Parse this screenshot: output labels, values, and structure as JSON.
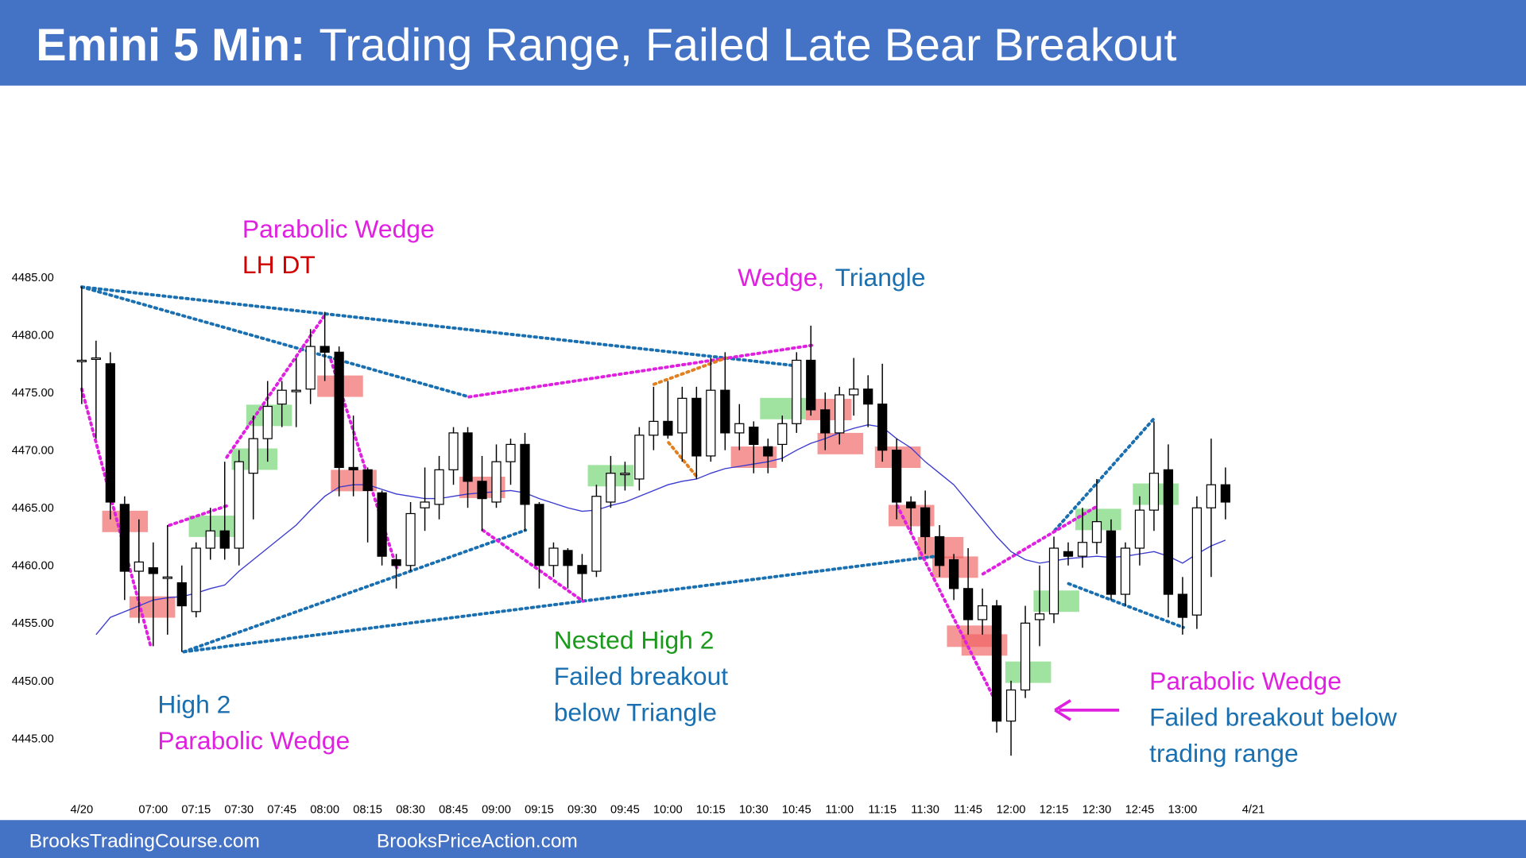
{
  "header": {
    "title_prefix": "Emini 5 Min:",
    "title": "Trading Range, Failed Late Bear Breakout"
  },
  "footer": {
    "left": "BrooksTradingCourse.com",
    "right": "BrooksPriceAction.com"
  },
  "chart_data": {
    "type": "candlestick",
    "categories": [
      "4/20",
      null,
      null,
      null,
      null,
      "07:00",
      null,
      null,
      "07:15",
      null,
      null,
      "07:30",
      null,
      null,
      "07:45",
      null,
      null,
      "08:00",
      null,
      null,
      "08:15",
      null,
      null,
      "08:30",
      null,
      null,
      "08:45",
      null,
      null,
      "09:00",
      null,
      null,
      "09:15",
      null,
      null,
      "09:30",
      null,
      null,
      "09:45",
      null,
      null,
      "10:00",
      null,
      null,
      "10:15",
      null,
      null,
      "10:30",
      null,
      null,
      "10:45",
      null,
      null,
      "11:00",
      null,
      null,
      "11:15",
      null,
      null,
      "11:30",
      null,
      null,
      "11:45",
      null,
      null,
      "12:00",
      null,
      null,
      "12:15",
      null,
      null,
      "12:30",
      null,
      null,
      "12:45",
      null,
      null,
      "13:00",
      null,
      null,
      null
    ],
    "next_day_label": "4/21",
    "open": [
      4477.8,
      4478,
      4477.5,
      4465.3,
      4459.5,
      4459.8,
      4459,
      4458.5,
      4456,
      4461.5,
      4463,
      4461.5,
      4468,
      4471,
      4474,
      4475.2,
      4475.3,
      4479,
      4478.5,
      4468.5,
      4468.3,
      4466.3,
      4460.5,
      4460,
      4465,
      4465.3,
      4468.3,
      4471.5,
      4467.3,
      4465.5,
      4469,
      4470.5,
      4465.3,
      4460,
      4461.3,
      4460,
      4459.5,
      4465.5,
      4468,
      4467.5,
      4471.3,
      4472.5,
      4471.5,
      4474.5,
      4469.5,
      4475.2,
      4471.5,
      4472,
      4470.3,
      4470.5,
      4472.3,
      4477.8,
      4473.5,
      4471.5,
      4474.8,
      4475.3,
      4474,
      4470,
      4465.5,
      4465,
      4462.5,
      4460.5,
      4458,
      4455.3,
      4456.5,
      4446.5,
      4449.2,
      4455.3,
      4455.8,
      4461.2,
      4460.8,
      4462,
      4463,
      4457.5,
      4461.5,
      4464.8,
      4468.3,
      4457.5,
      4455.7,
      4465,
      4467
    ],
    "high": [
      4484.2,
      4479.5,
      4478.5,
      4466,
      4464,
      4462,
      4463.5,
      4460,
      4462,
      4465,
      4469,
      4470,
      4473,
      4476,
      4476,
      4478,
      4480.5,
      4482,
      4479,
      4473,
      4468.5,
      4466.5,
      4461,
      4465.5,
      4468.5,
      4469.5,
      4472,
      4472,
      4469.5,
      4470.5,
      4471,
      4471.5,
      4465.5,
      4462,
      4461.5,
      4461,
      4467,
      4469.5,
      4469,
      4472,
      4475.5,
      4476,
      4475.5,
      4475.5,
      4478,
      4478.5,
      4474,
      4472.5,
      4471,
      4473,
      4478.5,
      4480.8,
      4475,
      4475.5,
      4478,
      4476.5,
      4477.5,
      4471,
      4466,
      4466.5,
      4463.5,
      4461,
      4461.5,
      4458,
      4457,
      4450,
      4456.5,
      4460,
      4462.5,
      4462,
      4465,
      4467.5,
      4464,
      4462,
      4466,
      4472.5,
      4470.5,
      4459,
      4466,
      4471,
      4468.5
    ],
    "low": [
      4474,
      4471,
      4464,
      4457,
      4455,
      4453,
      4454,
      4452.5,
      4455.5,
      4460.5,
      4460.5,
      4460,
      4464,
      4469,
      4472,
      4472,
      4474,
      4476,
      4466,
      4466,
      4462,
      4460,
      4458,
      4459.5,
      4463,
      4464,
      4467,
      4465,
      4463,
      4465,
      4467,
      4463,
      4458,
      4459,
      4458,
      4457,
      4459,
      4465,
      4466.5,
      4466.5,
      4470,
      4471,
      4469,
      4467.5,
      4469,
      4470,
      4470,
      4468,
      4468,
      4469,
      4471.5,
      4473,
      4470,
      4470.5,
      4473,
      4472,
      4469,
      4464,
      4463,
      4461,
      4459,
      4457,
      4454,
      4454,
      4445.5,
      4443.5,
      4448.5,
      4453,
      4455,
      4460,
      4459.8,
      4461,
      4457,
      4456.5,
      4460,
      4463,
      4455.5,
      4454,
      4454.5,
      4459,
      4464
    ],
    "close": [
      4477.8,
      4478,
      4465.5,
      4459.5,
      4460.3,
      4459.3,
      4459,
      4456.5,
      4461.5,
      4463,
      4461.5,
      4469,
      4471,
      4473.8,
      4475.2,
      4475.2,
      4479,
      4478.5,
      4468.5,
      4468.3,
      4466.5,
      4460.8,
      4460,
      4464.5,
      4465.5,
      4468.3,
      4471.5,
      4467.3,
      4465.8,
      4469,
      4470.5,
      4465.3,
      4460,
      4461.5,
      4460,
      4459.3,
      4466,
      4468,
      4468,
      4471.3,
      4472.5,
      4471.3,
      4474.5,
      4469.5,
      4475.2,
      4471.5,
      4472.3,
      4470.5,
      4469.5,
      4472.3,
      4477.8,
      4473.5,
      4471.5,
      4474.8,
      4475.3,
      4474,
      4470,
      4465.5,
      4465,
      4462.5,
      4460,
      4458,
      4455.3,
      4456.5,
      4446.5,
      4449.2,
      4455,
      4455.8,
      4461.5,
      4460.8,
      4462,
      4463.8,
      4457.5,
      4461.5,
      4464.8,
      4468,
      4457.5,
      4455.5,
      4465,
      4467,
      4465.5
    ],
    "moving_average": {
      "color": "#3a3ad0",
      "values": [
        null,
        4454,
        4455.5,
        4456,
        4456.5,
        4457,
        4457.2,
        4457.3,
        4457.6,
        4458,
        4458.3,
        4459.5,
        4460.5,
        4461.5,
        4462.5,
        4463.5,
        4464.8,
        4466,
        4466.8,
        4467,
        4467,
        4466.6,
        4466.2,
        4466,
        4465.8,
        4465.8,
        4466,
        4466.2,
        4466.3,
        4466.4,
        4466.5,
        4466.3,
        4465.8,
        4465.4,
        4465,
        4464.7,
        4464.8,
        4465.2,
        4465.5,
        4466,
        4466.5,
        4467,
        4467.3,
        4467.5,
        4468,
        4468.4,
        4468.6,
        4468.8,
        4469,
        4469.3,
        4470,
        4470.6,
        4471,
        4471.5,
        4471.9,
        4472.2,
        4472,
        4471,
        4470.2,
        4469,
        4468,
        4467,
        4465.5,
        4464,
        4462.5,
        4461.2,
        4460.5,
        4460.2,
        4460.4,
        4460.6,
        4460.7,
        4460.8,
        4460.7,
        4460.8,
        4461,
        4461.2,
        4460.8,
        4460.2,
        4461,
        4461.7,
        4462.2
      ]
    },
    "up_color": "#ffffff",
    "down_color": "#000000",
    "ylim": [
      4440,
      4501
    ],
    "yticks": [
      {
        "value": 4445,
        "label": "4445.00"
      },
      {
        "value": 4450,
        "label": "4450.00"
      },
      {
        "value": 4455,
        "label": "4455.00"
      },
      {
        "value": 4460,
        "label": "4460.00"
      },
      {
        "value": 4465,
        "label": "4465.00"
      },
      {
        "value": 4470,
        "label": "4470.00"
      },
      {
        "value": 4475,
        "label": "4475.00"
      },
      {
        "value": 4480,
        "label": "4480.00"
      },
      {
        "value": 4485,
        "label": "4485.00"
      }
    ],
    "grid": false,
    "annotations": [
      {
        "text": "Parabolic Wedge",
        "color": "#e020e0"
      },
      {
        "text": "LH DT",
        "color": "#d00000"
      },
      {
        "text": "Wedge,",
        "color": "#e020e0"
      },
      {
        "text": "Triangle",
        "color": "#1a6fb0"
      },
      {
        "text": "Nested High 2",
        "color": "#1a9a1a"
      },
      {
        "text": "Failed breakout",
        "color": "#1a6fb0"
      },
      {
        "text": "below Triangle",
        "color": "#1a6fb0"
      },
      {
        "text": "High 2",
        "color": "#1a6fb0"
      },
      {
        "text": "Parabolic Wedge",
        "color": "#e020e0"
      },
      {
        "text": "Parabolic Wedge",
        "color": "#e020e0"
      },
      {
        "text": "Failed breakout below",
        "color": "#1a6fb0"
      },
      {
        "text": "trading range",
        "color": "#1a6fb0"
      }
    ]
  }
}
